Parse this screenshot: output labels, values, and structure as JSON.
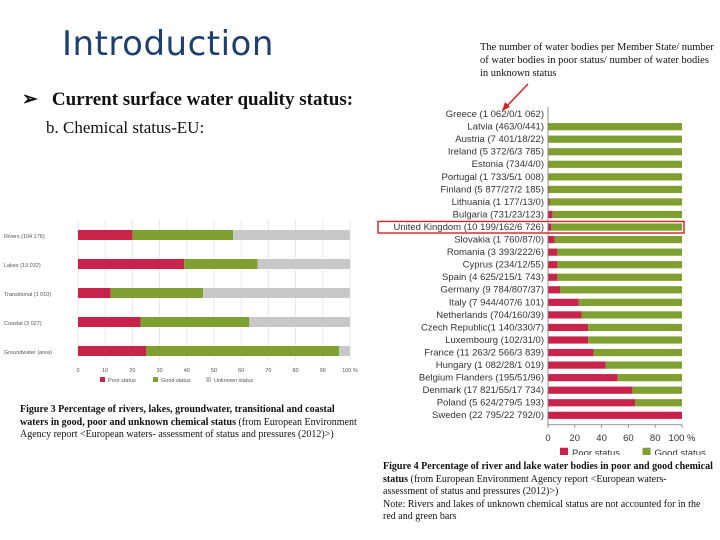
{
  "slide": {
    "title": "Introduction",
    "bullet": "Current surface water quality status:",
    "subheading": "b. Chemical status-EU:",
    "annotation": "The number of water bodies per Member State/ number of water bodies in poor status/ number of water bodies in unknown status",
    "caption_left_bold": "Figure 3 Percentage of rivers, lakes, groundwater, transitional and coastal waters in good, poor and unknown chemical status",
    "caption_left_rest": " (from European Environment Agency report <European waters- assessment of status and pressures (2012)>)",
    "caption_right_bold": "Figure 4 Percentage of river and lake water bodies in poor and good chemical status",
    "caption_right_rest": " (from European Environment Agency report <European waters- assessment of status and pressures (2012)>)",
    "caption_right_note": "Note: Rivers and lakes of unknown chemical status are not accounted for in the red and green bars"
  },
  "colors": {
    "poor": "#c8234a",
    "good": "#7fa030",
    "unknown": "#c8c8c8",
    "highlight": "#d82020",
    "title": "#1f3f6e"
  },
  "chart_data": [
    {
      "type": "bar",
      "orientation": "horizontal",
      "stacked": true,
      "categories": [
        "Rivers (104 176)",
        "Lakes (19 032)",
        "Transitional (1 010)",
        "Coastal (3 027)",
        "Groundwater (area)"
      ],
      "series": [
        {
          "name": "Poor status",
          "values": [
            20,
            39,
            12,
            23,
            25
          ]
        },
        {
          "name": "Good status",
          "values": [
            37,
            27,
            34,
            40,
            71
          ]
        },
        {
          "name": "Unknown status",
          "values": [
            43,
            34,
            54,
            37,
            4
          ]
        }
      ],
      "xticks": [
        "0",
        "10",
        "20",
        "30",
        "40",
        "50",
        "60",
        "70",
        "80",
        "90",
        "100 %"
      ],
      "xlim": [
        0,
        100
      ],
      "legend": "bottom"
    },
    {
      "type": "bar",
      "orientation": "horizontal",
      "stacked": true,
      "categories": [
        "Greece (1 062/0/1 062)",
        "Latvia (463/0/441)",
        "Austria (7 401/18/22)",
        "Ireland (5 372/6/3 785)",
        "Estonia (734/4/0)",
        "Portugal (1 733/5/1 008)",
        "Finland (5 877/27/2 185)",
        "Lithuania (1 177/13/0)",
        "Bulgaria (731/23/123)",
        "United Kingdom (10 199/162/6 726)",
        "Slovakia (1 760/87/0)",
        "Romania (3 393/222/6)",
        "Cyprus (234/12/55)",
        "Spain (4 625/215/1 743)",
        "Germany (9 784/807/37)",
        "Italy (7 944/407/6 101)",
        "Netherlands (704/160/39)",
        "Czech Republic(1 140/330/7)",
        "Luxembourg (102/31/0)",
        "France (11 263/2 566/3 839)",
        "Hungary (1 082/28/1 019)",
        "Belgium Flanders (195/51/96)",
        "Denmark (17 821/55/17 734)",
        "Poland (5 624/279/5 193)",
        "Sweden (22 795/22 792/0)"
      ],
      "series": [
        {
          "name": "Poor status",
          "values": [
            0,
            0,
            0.5,
            0.5,
            0.5,
            0.5,
            0.7,
            1.1,
            3.5,
            2.5,
            5,
            7,
            7,
            7,
            9,
            23,
            25,
            30,
            30,
            34,
            43,
            52,
            63,
            65,
            100
          ]
        },
        {
          "name": "Good status",
          "values": [
            0,
            100,
            99.5,
            99.5,
            99.5,
            99.5,
            99.3,
            98.9,
            96.5,
            97.5,
            95,
            93,
            93,
            93,
            91,
            77,
            75,
            70,
            70,
            66,
            57,
            48,
            37,
            35,
            0
          ]
        }
      ],
      "highlighted_category": "United Kingdom (10 199/162/6 726)",
      "xticks": [
        "0",
        "20",
        "40",
        "60",
        "80",
        "100 %"
      ],
      "xlim": [
        0,
        100
      ],
      "legend": "bottom"
    }
  ]
}
